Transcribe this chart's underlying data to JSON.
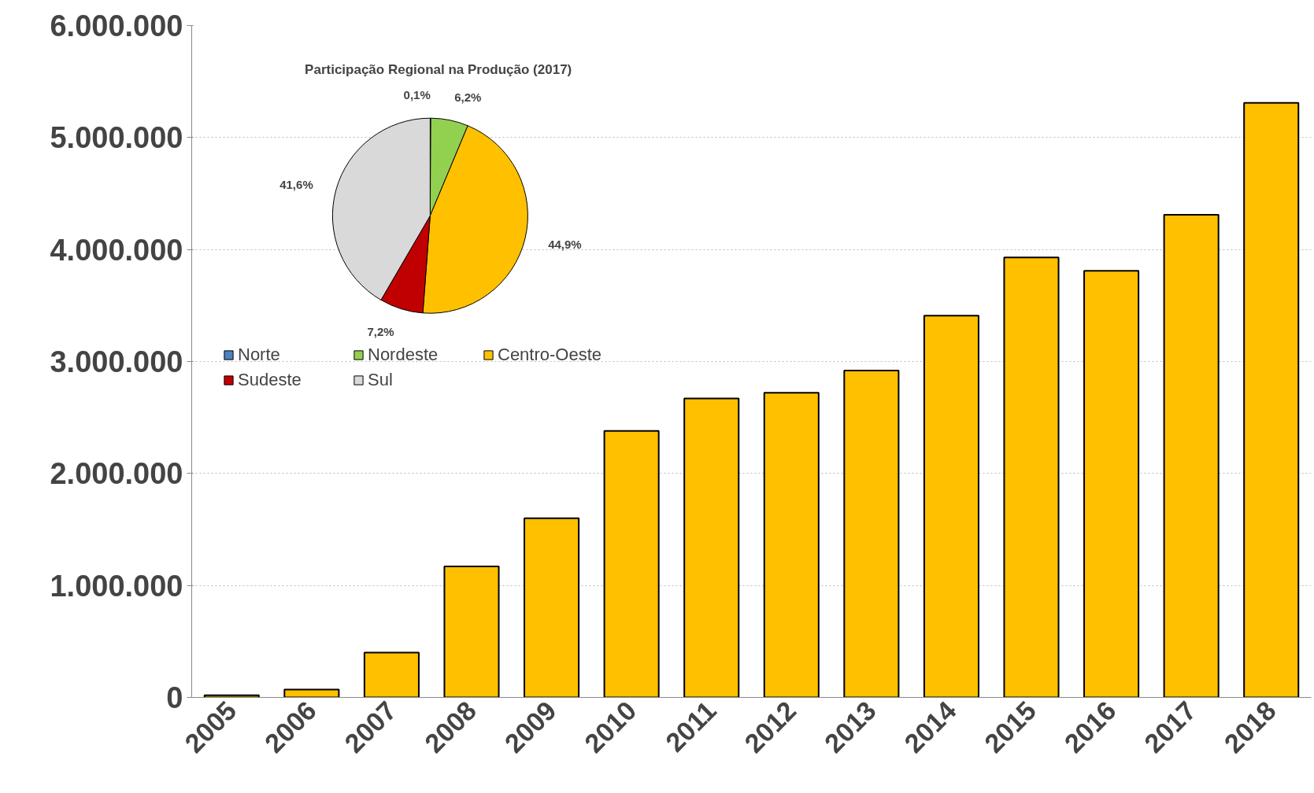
{
  "chart_data": [
    {
      "type": "bar",
      "categories": [
        "2005",
        "2006",
        "2007",
        "2008",
        "2009",
        "2010",
        "2011",
        "2012",
        "2013",
        "2014",
        "2015",
        "2016",
        "2017",
        "2018"
      ],
      "values": [
        20000,
        70000,
        400000,
        1170000,
        1600000,
        2380000,
        2670000,
        2720000,
        2920000,
        3410000,
        3930000,
        3810000,
        4310000,
        5310000
      ],
      "color": "#ffc000",
      "ylim": [
        0,
        6000000
      ],
      "yticks": [
        0,
        {
          "value": 1000000,
          "label": "1.000.000"
        },
        {
          "value": 2000000,
          "label": "2.000.000"
        },
        {
          "value": 3000000,
          "label": "3.000.000"
        },
        {
          "value": 4000000,
          "label": "4.000.000"
        },
        {
          "value": 5000000,
          "label": "5.000.000"
        },
        {
          "value": 6000000,
          "label": "6.000.000"
        }
      ],
      "grid": "y"
    },
    {
      "type": "pie",
      "title": "Participação  Regional  na Produção (2017)",
      "categories": [
        "Norte",
        "Nordeste",
        "Centro-Oeste",
        "Sudeste",
        "Sul"
      ],
      "values": [
        0.1,
        6.2,
        44.9,
        7.2,
        41.6
      ],
      "colors": [
        "#4f81bd",
        "#92d050",
        "#ffc000",
        "#c00000",
        "#d9d9d9"
      ],
      "value_labels": [
        "0,1%",
        "6,2%",
        "44,9%",
        "7,2%",
        "41,6%"
      ],
      "legend": "bottom"
    }
  ]
}
